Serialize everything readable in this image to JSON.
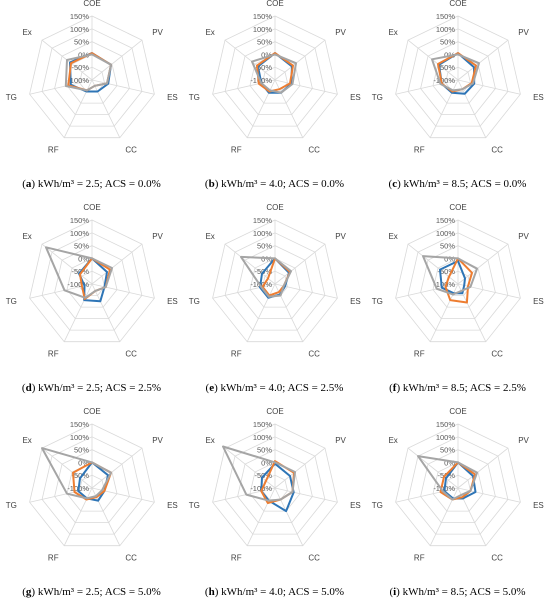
{
  "colors": {
    "series1": "#2E75B6",
    "series2": "#ED7D31",
    "series3": "#A5A5A5",
    "grid": "#D9D9D9"
  },
  "chart_data": [
    {
      "type": "radar",
      "panel_label": "a",
      "caption_text": "kWh/m³ = 2.5; ACS = 0.0%",
      "axes": [
        "COE",
        "PV",
        "ES",
        "CC",
        "RF",
        "TG",
        "Ex"
      ],
      "r_ticks": [
        "150%",
        "100%",
        "50%",
        "0%",
        "-50%",
        "-100%"
      ],
      "rlim": [
        -100,
        150
      ],
      "series": [
        {
          "values": [
            5,
            -5,
            -35,
            -50,
            -50,
            -15,
            10
          ]
        },
        {
          "values": [
            5,
            -5,
            -40,
            -75,
            -55,
            -5,
            5
          ]
        },
        {
          "values": [
            0,
            -5,
            -40,
            -75,
            -55,
            5,
            25
          ]
        }
      ]
    },
    {
      "type": "radar",
      "panel_label": "b",
      "caption_text": "kWh/m³ = 4.0; ACS = 0.0%",
      "axes": [
        "COE",
        "PV",
        "ES",
        "CC",
        "RF",
        "TG",
        "Ex"
      ],
      "r_ticks": [
        "150%",
        "100%",
        "50%",
        "0%",
        "-50%",
        "-100%"
      ],
      "rlim": [
        -100,
        150
      ],
      "series": [
        {
          "values": [
            5,
            -15,
            -35,
            -45,
            -45,
            -45,
            -15
          ]
        },
        {
          "values": [
            5,
            -10,
            -40,
            -60,
            -50,
            -35,
            -10
          ]
        },
        {
          "values": [
            0,
            5,
            -30,
            -45,
            -55,
            -45,
            15
          ]
        }
      ]
    },
    {
      "type": "radar",
      "panel_label": "c",
      "caption_text": "kWh/m³ = 8.5; ACS = 0.0%",
      "axes": [
        "COE",
        "PV",
        "ES",
        "CC",
        "RF",
        "TG",
        "Ex"
      ],
      "r_ticks": [
        "150%",
        "100%",
        "50%",
        "0%",
        "-50%",
        "-100%"
      ],
      "rlim": [
        -100,
        150
      ],
      "series": [
        {
          "values": [
            5,
            -20,
            -35,
            -40,
            -45,
            -35,
            -5
          ]
        },
        {
          "values": [
            5,
            -10,
            -45,
            -60,
            -50,
            -35,
            0
          ]
        },
        {
          "values": [
            0,
            5,
            -40,
            -60,
            -55,
            -30,
            30
          ]
        }
      ]
    },
    {
      "type": "radar",
      "panel_label": "d",
      "caption_text": "kWh/m³ = 2.5; ACS = 2.5%",
      "axes": [
        "COE",
        "PV",
        "ES",
        "CC",
        "RF",
        "TG",
        "Ex"
      ],
      "r_ticks": [
        "150%",
        "100%",
        "50%",
        "0%",
        "-50%",
        "-100%"
      ],
      "rlim": [
        -100,
        150
      ],
      "series": [
        {
          "values": [
            0,
            -25,
            -50,
            -25,
            -30,
            -70,
            -35
          ]
        },
        {
          "values": [
            0,
            -10,
            -45,
            -70,
            -35,
            -60,
            -40
          ]
        },
        {
          "values": [
            0,
            0,
            -45,
            -70,
            -40,
            10,
            130
          ]
        }
      ]
    },
    {
      "type": "radar",
      "panel_label": "e",
      "caption_text": "kWh/m³ = 4.0; ACS = 2.5%",
      "axes": [
        "COE",
        "PV",
        "ES",
        "CC",
        "RF",
        "TG",
        "Ex"
      ],
      "r_ticks": [
        "150%",
        "100%",
        "50%",
        "0%",
        "-50%",
        "-100%"
      ],
      "rlim": [
        -100,
        150
      ],
      "series": [
        {
          "values": [
            0,
            -30,
            -60,
            -55,
            -40,
            -40,
            -35
          ]
        },
        {
          "values": [
            0,
            -25,
            -65,
            -65,
            -50,
            -50,
            -65
          ]
        },
        {
          "values": [
            0,
            -20,
            -65,
            -50,
            -45,
            -45,
            70
          ]
        }
      ]
    },
    {
      "type": "radar",
      "panel_label": "f",
      "caption_text": "kWh/m³ = 8.5; ACS = 2.5%",
      "axes": [
        "COE",
        "PV",
        "ES",
        "CC",
        "RF",
        "TG",
        "Ex"
      ],
      "r_ticks": [
        "150%",
        "100%",
        "50%",
        "0%",
        "-50%",
        "-100%"
      ],
      "rlim": [
        -100,
        150
      ],
      "series": [
        {
          "values": [
            -10,
            -65,
            -75,
            -60,
            -60,
            -35,
            -10
          ]
        },
        {
          "values": [
            0,
            -30,
            -60,
            -20,
            -30,
            -50,
            -55
          ]
        },
        {
          "values": [
            0,
            -5,
            -50,
            -70,
            -55,
            -15,
            75
          ]
        }
      ]
    },
    {
      "type": "radar",
      "panel_label": "g",
      "caption_text": "kWh/m³ = 2.5; ACS = 5.0%",
      "axes": [
        "COE",
        "PV",
        "ES",
        "CC",
        "RF",
        "TG",
        "Ex"
      ],
      "r_ticks": [
        "150%",
        "100%",
        "50%",
        "0%",
        "-50%",
        "-100%"
      ],
      "rlim": [
        -100,
        150
      ],
      "series": [
        {
          "values": [
            0,
            -20,
            -50,
            -45,
            -55,
            -45,
            -40
          ]
        },
        {
          "values": [
            0,
            -5,
            -50,
            -60,
            -50,
            -30,
            -5
          ]
        },
        {
          "values": [
            0,
            -5,
            -60,
            -65,
            -55,
            0,
            150
          ]
        }
      ]
    },
    {
      "type": "radar",
      "panel_label": "h",
      "caption_text": "kWh/m³ = 4.0; ACS = 5.0%",
      "axes": [
        "COE",
        "PV",
        "ES",
        "CC",
        "RF",
        "TG",
        "Ex"
      ],
      "r_ticks": [
        "150%",
        "100%",
        "50%",
        "0%",
        "-50%",
        "-100%"
      ],
      "rlim": [
        -100,
        150
      ],
      "series": [
        {
          "values": [
            -5,
            -25,
            -25,
            0,
            -45,
            -45,
            -35
          ]
        },
        {
          "values": [
            5,
            -5,
            -30,
            -50,
            -35,
            -45,
            -55
          ]
        },
        {
          "values": [
            0,
            0,
            -30,
            -50,
            -45,
            15,
            160
          ]
        }
      ]
    },
    {
      "type": "radar",
      "panel_label": "i",
      "caption_text": "kWh/m³ = 8.5; ACS = 5.0%",
      "axes": [
        "COE",
        "PV",
        "ES",
        "CC",
        "RF",
        "TG",
        "Ex"
      ],
      "r_ticks": [
        "150%",
        "100%",
        "50%",
        "0%",
        "-50%",
        "-100%"
      ],
      "rlim": [
        -100,
        150
      ],
      "series": [
        {
          "values": [
            0,
            -25,
            -30,
            -55,
            -55,
            -45,
            -40
          ]
        },
        {
          "values": [
            0,
            -15,
            -50,
            -60,
            -50,
            -30,
            -30
          ]
        },
        {
          "values": [
            0,
            -5,
            -50,
            -70,
            -50,
            -40,
            100
          ]
        }
      ]
    }
  ]
}
